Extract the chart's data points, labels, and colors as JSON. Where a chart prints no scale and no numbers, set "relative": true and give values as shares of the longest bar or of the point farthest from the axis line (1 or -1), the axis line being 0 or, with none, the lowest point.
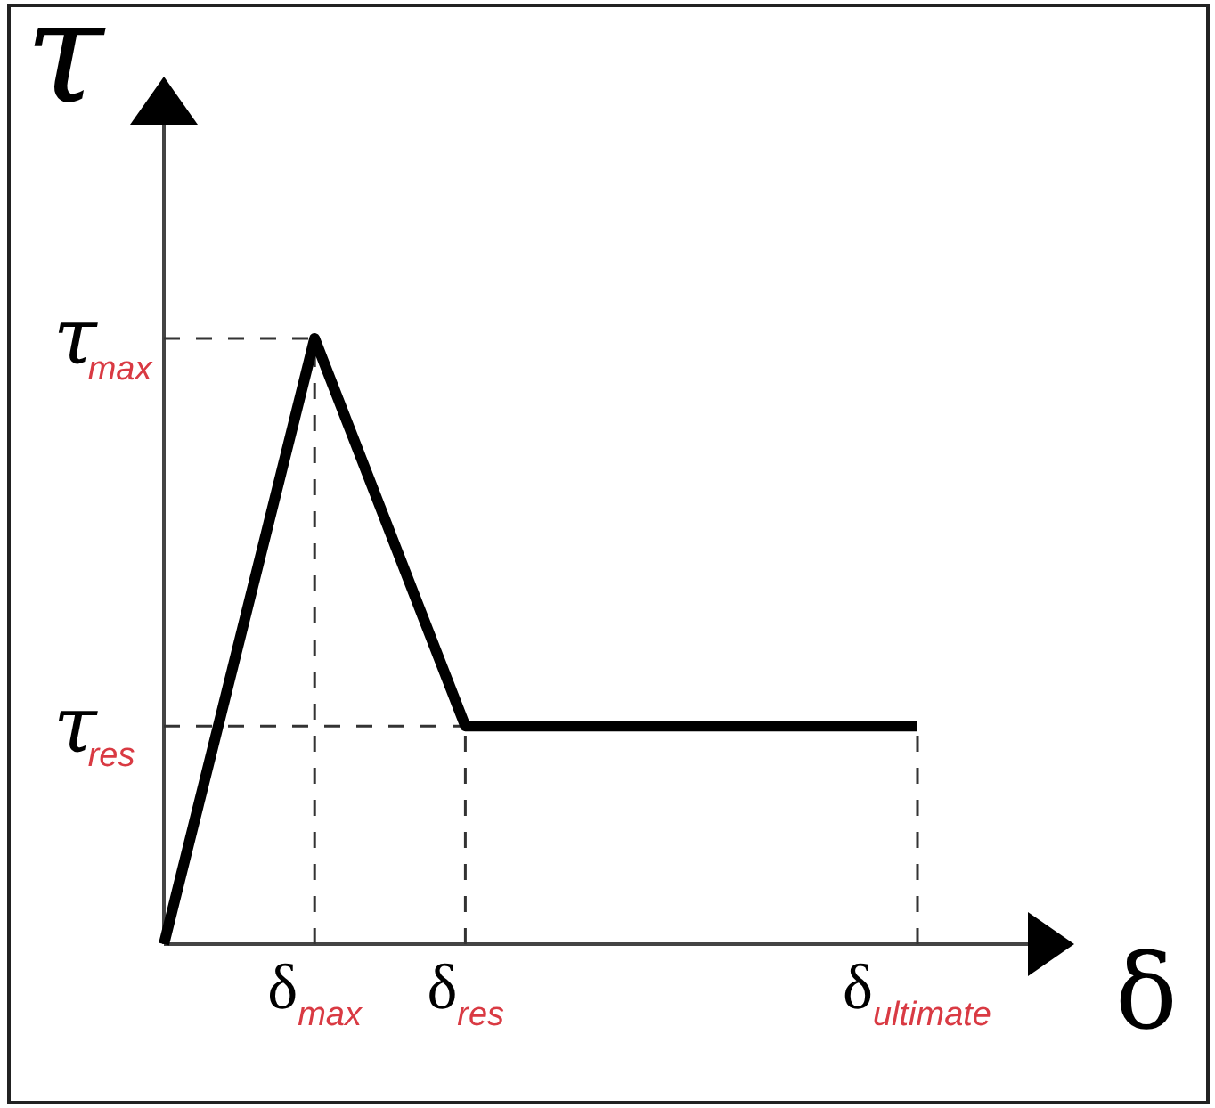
{
  "chart_data": {
    "type": "line",
    "xlabel": "δ",
    "ylabel": "τ",
    "relative": true,
    "categories": [
      null,
      "δ$_{max}$",
      "δ$_{res}$",
      null,
      null,
      "δ$_{ultimate}$"
    ],
    "series": [
      {
        "color": "#000000",
        "values": [
          0,
          1,
          0.36,
          0.36,
          0.36,
          0.36
        ]
      }
    ],
    "ref_lines": [
      {
        "axis": "y",
        "value": 1,
        "label": "τ$_{max}$",
        "color": "#333333",
        "line_style": "dashed"
      },
      {
        "axis": "y",
        "value": 0.36,
        "label": "τ$_{res}$",
        "color": "#333333",
        "line_style": "dashed"
      },
      {
        "axis": "x",
        "value": "δ$_{max}$",
        "color": "#333333",
        "line_style": "dashed"
      },
      {
        "axis": "x",
        "value": "δ$_{res}$",
        "color": "#333333",
        "line_style": "dashed"
      },
      {
        "axis": "x",
        "value": "δ$_{ultimate}$",
        "color": "#333333",
        "line_style": "dashed"
      }
    ]
  }
}
